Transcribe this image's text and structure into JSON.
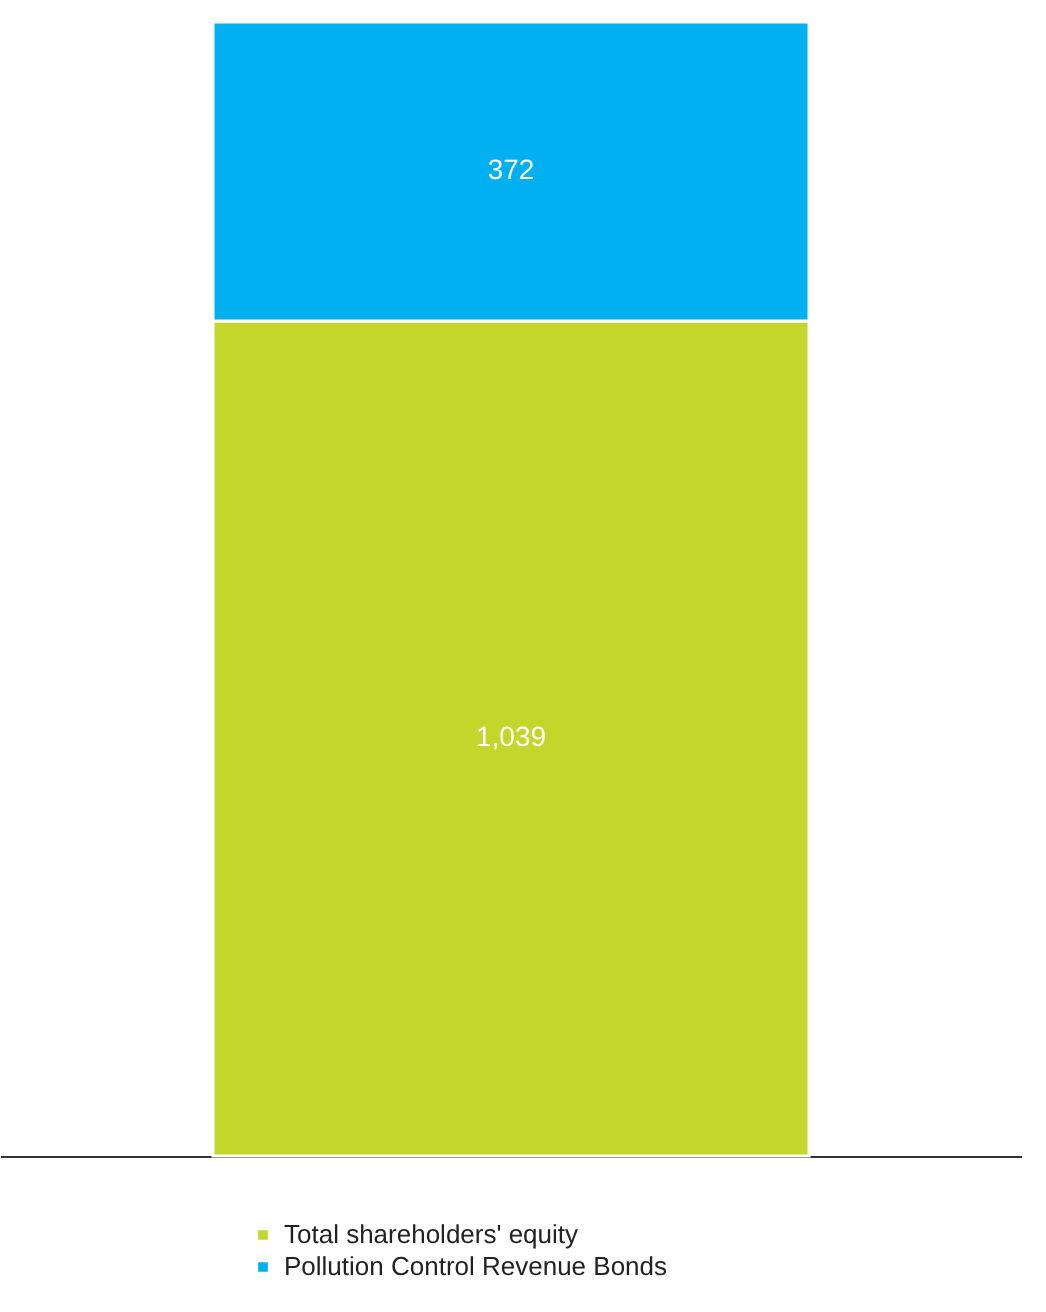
{
  "chart_data": {
    "type": "bar",
    "stacked": true,
    "categories": [
      null
    ],
    "series": [
      {
        "name": "Total shareholders' equity",
        "color": "#c5d62a",
        "values": [
          1039
        ],
        "value_labels": [
          "1,039"
        ]
      },
      {
        "name": "Pollution Control Revenue Bonds",
        "color": "#00b0f0",
        "values": [
          372
        ],
        "value_labels": [
          "372"
        ]
      }
    ],
    "legend": "bottom",
    "tick_labels": false
  }
}
